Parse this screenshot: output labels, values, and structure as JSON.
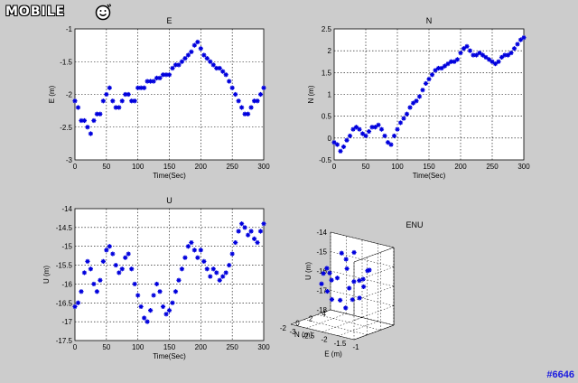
{
  "watermark": {
    "logo_text": "MOBILE",
    "logo_icon": "smiley-face-icon",
    "id_text": "#6646"
  },
  "colors": {
    "marker": "#0000dd",
    "axes_bg": "#ffffff",
    "figure_bg": "#cccccc",
    "grid": "#000000",
    "watermark": "#1a1ae0"
  },
  "chart_data": [
    {
      "type": "scatter",
      "title": "E",
      "xlabel": "Time(Sec)",
      "ylabel": "E (m)",
      "xlim": [
        0,
        300
      ],
      "ylim": [
        -3,
        -1
      ],
      "xticks": [
        "0",
        "50",
        "100",
        "150",
        "200",
        "250",
        "300"
      ],
      "yticks": [
        "-3",
        "-2.5",
        "-2",
        "-1.5",
        "-1"
      ],
      "grid": true,
      "marker": "*",
      "series": [
        {
          "x": [
            0,
            5,
            10,
            15,
            20,
            25,
            30,
            35,
            40,
            45,
            50,
            55,
            60,
            65,
            70,
            75,
            80,
            85,
            90,
            95,
            100,
            105,
            110,
            115,
            120,
            125,
            130,
            135,
            140,
            145,
            150,
            155,
            160,
            165,
            170,
            175,
            180,
            185,
            190,
            195,
            200,
            205,
            210,
            215,
            220,
            225,
            230,
            235,
            240,
            245,
            250,
            255,
            260,
            265,
            270,
            275,
            280,
            285,
            290,
            295,
            300
          ],
          "y": [
            -2.1,
            -2.2,
            -2.4,
            -2.4,
            -2.5,
            -2.6,
            -2.4,
            -2.3,
            -2.3,
            -2.1,
            -2.0,
            -1.9,
            -2.1,
            -2.2,
            -2.2,
            -2.1,
            -2.0,
            -2.0,
            -2.1,
            -2.1,
            -1.9,
            -1.9,
            -1.9,
            -1.8,
            -1.8,
            -1.8,
            -1.75,
            -1.75,
            -1.7,
            -1.7,
            -1.7,
            -1.6,
            -1.55,
            -1.55,
            -1.5,
            -1.45,
            -1.4,
            -1.35,
            -1.25,
            -1.2,
            -1.3,
            -1.4,
            -1.45,
            -1.5,
            -1.55,
            -1.6,
            -1.6,
            -1.65,
            -1.7,
            -1.8,
            -1.9,
            -2.0,
            -2.1,
            -2.2,
            -2.3,
            -2.3,
            -2.2,
            -2.1,
            -2.1,
            -2.0,
            -1.9
          ]
        }
      ]
    },
    {
      "type": "scatter",
      "title": "N",
      "xlabel": "Time(Sec)",
      "ylabel": "N (m)",
      "xlim": [
        0,
        300
      ],
      "ylim": [
        -0.5,
        2.5
      ],
      "xticks": [
        "0",
        "50",
        "100",
        "150",
        "200",
        "250",
        "300"
      ],
      "yticks": [
        "-0.5",
        "0",
        "0.5",
        "1",
        "1.5",
        "2",
        "2.5"
      ],
      "grid": true,
      "marker": "*",
      "series": [
        {
          "x": [
            0,
            5,
            10,
            15,
            20,
            25,
            30,
            35,
            40,
            45,
            50,
            55,
            60,
            65,
            70,
            75,
            80,
            85,
            90,
            95,
            100,
            105,
            110,
            115,
            120,
            125,
            130,
            135,
            140,
            145,
            150,
            155,
            160,
            165,
            170,
            175,
            180,
            185,
            190,
            195,
            200,
            205,
            210,
            215,
            220,
            225,
            230,
            235,
            240,
            245,
            250,
            255,
            260,
            265,
            270,
            275,
            280,
            285,
            290,
            295,
            300
          ],
          "y": [
            -0.1,
            -0.15,
            -0.3,
            -0.2,
            -0.05,
            0.05,
            0.2,
            0.25,
            0.2,
            0.1,
            0.05,
            0.15,
            0.25,
            0.25,
            0.3,
            0.2,
            0.05,
            -0.1,
            -0.15,
            0.05,
            0.2,
            0.35,
            0.45,
            0.55,
            0.7,
            0.8,
            0.85,
            0.95,
            1.1,
            1.25,
            1.35,
            1.45,
            1.55,
            1.6,
            1.6,
            1.65,
            1.7,
            1.75,
            1.75,
            1.8,
            1.95,
            2.05,
            2.1,
            2.0,
            1.9,
            1.9,
            1.95,
            1.9,
            1.85,
            1.8,
            1.75,
            1.7,
            1.75,
            1.85,
            1.9,
            1.9,
            1.95,
            2.05,
            2.15,
            2.25,
            2.3
          ]
        }
      ]
    },
    {
      "type": "scatter",
      "title": "U",
      "xlabel": "Time(Sec)",
      "ylabel": "U (m)",
      "xlim": [
        0,
        300
      ],
      "ylim": [
        -17.5,
        -14
      ],
      "xticks": [
        "0",
        "50",
        "100",
        "150",
        "200",
        "250",
        "300"
      ],
      "yticks": [
        "-17.5",
        "-17",
        "-16.5",
        "-16",
        "-15.5",
        "-15",
        "-14.5",
        "-14"
      ],
      "grid": true,
      "marker": "*",
      "series": [
        {
          "x": [
            0,
            5,
            10,
            15,
            20,
            25,
            30,
            35,
            40,
            45,
            50,
            55,
            60,
            65,
            70,
            75,
            80,
            85,
            90,
            95,
            100,
            105,
            110,
            115,
            120,
            125,
            130,
            135,
            140,
            145,
            150,
            155,
            160,
            165,
            170,
            175,
            180,
            185,
            190,
            195,
            200,
            205,
            210,
            215,
            220,
            225,
            230,
            235,
            240,
            245,
            250,
            255,
            260,
            265,
            270,
            275,
            280,
            285,
            290,
            295,
            300
          ],
          "y": [
            -16.6,
            -16.5,
            -16.2,
            -15.7,
            -15.4,
            -15.6,
            -16.0,
            -16.2,
            -15.9,
            -15.4,
            -15.1,
            -15.0,
            -15.2,
            -15.5,
            -15.7,
            -15.6,
            -15.3,
            -15.2,
            -15.6,
            -16.0,
            -16.3,
            -16.6,
            -16.9,
            -17.0,
            -16.7,
            -16.3,
            -16.0,
            -16.2,
            -16.6,
            -16.8,
            -16.7,
            -16.5,
            -16.2,
            -15.9,
            -15.6,
            -15.3,
            -15.0,
            -14.9,
            -15.1,
            -15.3,
            -15.1,
            -15.4,
            -15.6,
            -15.8,
            -15.6,
            -15.7,
            -15.9,
            -15.8,
            -15.7,
            -15.5,
            -15.2,
            -14.9,
            -14.6,
            -14.4,
            -14.5,
            -14.7,
            -14.6,
            -14.8,
            -14.9,
            -14.6,
            -14.4
          ]
        }
      ]
    },
    {
      "type": "scatter",
      "subtype": "scatter3d",
      "title": "ENU",
      "xlabel": "E (m)",
      "ylabel": "N (m)",
      "zlabel": "U (m)",
      "xlim": [
        -3,
        -1
      ],
      "ylim": [
        -2,
        4
      ],
      "zlim": [
        -18,
        -14
      ],
      "xticks": [
        "-3",
        "-2.5",
        "-2",
        "-1.5",
        "-1"
      ],
      "yticks": [
        "-2",
        "0",
        "2",
        "4"
      ],
      "zticks": [
        "-18",
        "-17",
        "-16",
        "-15",
        "-14"
      ],
      "grid": true,
      "marker": "*",
      "series": [
        {
          "x": [
            -2.1,
            -2.2,
            -2.4,
            -2.5,
            -2.3,
            -2.0,
            -2.2,
            -2.1,
            -1.9,
            -1.8,
            -1.75,
            -1.7,
            -1.55,
            -1.45,
            -1.3,
            -1.4,
            -1.55,
            -1.65,
            -1.8,
            -2.0,
            -2.2,
            -2.1,
            -1.9
          ],
          "y": [
            -0.1,
            -0.3,
            0.05,
            0.25,
            0.1,
            0.25,
            0.05,
            -0.15,
            0.2,
            0.55,
            0.85,
            1.1,
            1.45,
            1.6,
            1.75,
            1.95,
            2.0,
            1.9,
            1.8,
            1.7,
            1.85,
            2.05,
            2.3
          ],
          "z": [
            -16.6,
            -16.2,
            -15.4,
            -16.0,
            -15.1,
            -15.5,
            -15.3,
            -15.6,
            -16.6,
            -17.0,
            -16.0,
            -16.6,
            -16.5,
            -15.9,
            -15.0,
            -15.1,
            -15.6,
            -15.7,
            -15.8,
            -15.2,
            -14.5,
            -14.8,
            -14.4
          ]
        }
      ]
    }
  ]
}
